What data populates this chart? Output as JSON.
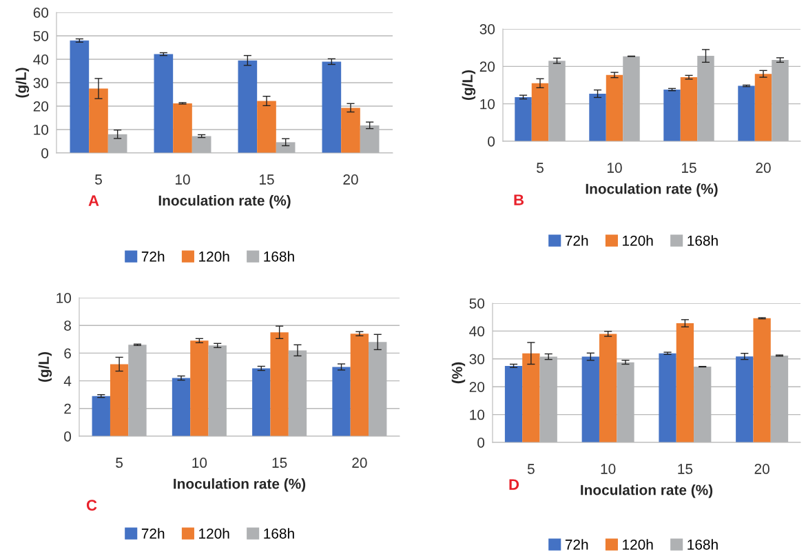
{
  "chart_data": [
    {
      "type": "bar",
      "xlabel": "Inoculation rate (%)",
      "ylabel": "(g/L)",
      "categories": [
        "5",
        "10",
        "15",
        "20"
      ],
      "ylim": [
        0,
        60
      ],
      "yticks": [
        0,
        10,
        20,
        30,
        40,
        50,
        60
      ],
      "grid": "y",
      "legend": "bottom",
      "annotations": [
        "A"
      ],
      "series": [
        {
          "name": "72h",
          "color": "#4472c4",
          "values": [
            48,
            42.2,
            39.5,
            39
          ],
          "errors": [
            0.7,
            0.6,
            2.1,
            1.2
          ]
        },
        {
          "name": "120h",
          "color": "#ed7d31",
          "values": [
            27.5,
            21.2,
            22.2,
            19.3
          ],
          "errors": [
            4.3,
            0.3,
            2.0,
            1.8
          ]
        },
        {
          "name": "168h",
          "color": "#afb1b3",
          "values": [
            8,
            7.2,
            4.6,
            11.8
          ],
          "errors": [
            1.8,
            0.6,
            1.5,
            1.4
          ]
        }
      ]
    },
    {
      "type": "bar",
      "xlabel": "Inoculation rate (%)",
      "ylabel": "(g/L)",
      "categories": [
        "5",
        "10",
        "15",
        "20"
      ],
      "ylim": [
        0,
        30
      ],
      "yticks": [
        0,
        10,
        20,
        30
      ],
      "grid": "y",
      "legend": "bottom",
      "annotations": [
        "B"
      ],
      "series": [
        {
          "name": "72h",
          "color": "#4472c4",
          "values": [
            11.8,
            12.7,
            13.8,
            14.8
          ],
          "errors": [
            0.5,
            1.0,
            0.3,
            0.2
          ]
        },
        {
          "name": "120h",
          "color": "#ed7d31",
          "values": [
            15.5,
            17.7,
            17.1,
            18
          ],
          "errors": [
            1.2,
            0.7,
            0.5,
            0.9
          ]
        },
        {
          "name": "168h",
          "color": "#afb1b3",
          "values": [
            21.5,
            22.7,
            22.8,
            21.7
          ],
          "errors": [
            0.7,
            0.05,
            1.7,
            0.6
          ]
        }
      ]
    },
    {
      "type": "bar",
      "xlabel": "Inoculation rate (%)",
      "ylabel": "(g/L)",
      "categories": [
        "5",
        "10",
        "15",
        "20"
      ],
      "ylim": [
        0,
        10
      ],
      "yticks": [
        0,
        2,
        4,
        6,
        8,
        10
      ],
      "grid": "y",
      "legend": "bottom",
      "annotations": [
        "C"
      ],
      "series": [
        {
          "name": "72h",
          "color": "#4472c4",
          "values": [
            2.9,
            4.2,
            4.9,
            5.0
          ],
          "errors": [
            0.1,
            0.15,
            0.15,
            0.22
          ]
        },
        {
          "name": "120h",
          "color": "#ed7d31",
          "values": [
            5.2,
            6.9,
            7.5,
            7.4
          ],
          "errors": [
            0.5,
            0.15,
            0.45,
            0.15
          ]
        },
        {
          "name": "168h",
          "color": "#afb1b3",
          "values": [
            6.6,
            6.55,
            6.2,
            6.8
          ],
          "errors": [
            0.05,
            0.15,
            0.4,
            0.55
          ]
        }
      ]
    },
    {
      "type": "bar",
      "xlabel": "Inoculation rate (%)",
      "ylabel": "(%)",
      "categories": [
        "5",
        "10",
        "15",
        "20"
      ],
      "ylim": [
        0,
        50
      ],
      "yticks": [
        0,
        10,
        20,
        30,
        40,
        50
      ],
      "grid": "y",
      "legend": "bottom",
      "annotations": [
        "D"
      ],
      "series": [
        {
          "name": "72h",
          "color": "#4472c4",
          "values": [
            27.5,
            30.8,
            32,
            30.9
          ],
          "errors": [
            0.6,
            1.3,
            0.4,
            1.1
          ]
        },
        {
          "name": "120h",
          "color": "#ed7d31",
          "values": [
            32,
            39,
            42.8,
            44.6
          ],
          "errors": [
            3.9,
            0.9,
            1.3,
            0.2
          ]
        },
        {
          "name": "168h",
          "color": "#afb1b3",
          "values": [
            30.8,
            28.8,
            27.2,
            31.2
          ],
          "errors": [
            1.0,
            0.7,
            0.1,
            0.2
          ]
        }
      ]
    }
  ]
}
